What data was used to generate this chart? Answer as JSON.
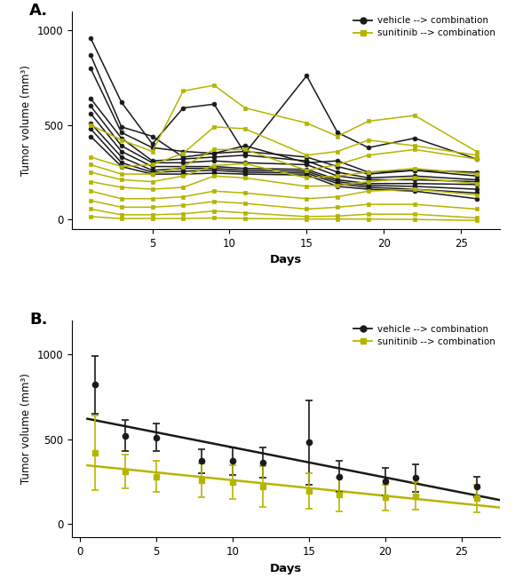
{
  "panel_A_label": "A.",
  "panel_B_label": "B.",
  "black_color": "#1a1a1a",
  "yellow_color": "#b5b500",
  "ylabel": "Tumor volume (mm³)",
  "xlabel": "Days",
  "legend_black": "vehicle --> combination",
  "legend_yellow": "sunitinib --> combination",
  "panel_A_black_lines": [
    [
      1,
      960,
      3,
      620,
      5,
      400,
      7,
      590,
      9,
      610,
      11,
      350,
      15,
      760,
      17,
      460,
      19,
      380,
      22,
      430,
      26,
      320
    ],
    [
      1,
      870,
      3,
      490,
      5,
      440,
      7,
      330,
      9,
      350,
      11,
      390,
      15,
      300,
      17,
      310,
      19,
      250,
      22,
      260,
      26,
      250
    ],
    [
      1,
      800,
      3,
      460,
      5,
      380,
      7,
      360,
      9,
      350,
      11,
      360,
      15,
      330,
      17,
      280,
      19,
      240,
      22,
      260,
      26,
      230
    ],
    [
      1,
      640,
      3,
      430,
      5,
      310,
      7,
      320,
      9,
      330,
      11,
      340,
      15,
      310,
      17,
      250,
      19,
      220,
      22,
      230,
      26,
      210
    ],
    [
      1,
      600,
      3,
      390,
      5,
      300,
      7,
      300,
      9,
      310,
      11,
      300,
      15,
      290,
      17,
      230,
      19,
      210,
      22,
      210,
      26,
      200
    ],
    [
      1,
      560,
      3,
      360,
      5,
      280,
      7,
      280,
      9,
      280,
      11,
      270,
      15,
      265,
      17,
      210,
      19,
      190,
      22,
      190,
      26,
      185
    ],
    [
      1,
      510,
      3,
      330,
      5,
      260,
      7,
      270,
      9,
      270,
      11,
      260,
      15,
      255,
      17,
      200,
      19,
      180,
      22,
      175,
      26,
      160
    ],
    [
      1,
      480,
      3,
      300,
      5,
      250,
      7,
      255,
      9,
      260,
      11,
      250,
      15,
      245,
      17,
      190,
      19,
      170,
      22,
      160,
      26,
      140
    ],
    [
      1,
      440,
      3,
      280,
      5,
      240,
      7,
      240,
      9,
      245,
      11,
      240,
      15,
      235,
      17,
      175,
      19,
      160,
      22,
      150,
      26,
      110
    ]
  ],
  "panel_A_yellow_lines": [
    [
      1,
      500,
      3,
      420,
      5,
      360,
      7,
      680,
      9,
      710,
      11,
      590,
      15,
      510,
      17,
      440,
      19,
      520,
      22,
      550,
      26,
      360
    ],
    [
      1,
      330,
      3,
      280,
      5,
      290,
      7,
      350,
      9,
      490,
      11,
      480,
      15,
      340,
      17,
      360,
      19,
      420,
      22,
      390,
      26,
      340
    ],
    [
      1,
      290,
      3,
      240,
      5,
      240,
      7,
      280,
      9,
      370,
      11,
      370,
      15,
      260,
      17,
      290,
      19,
      340,
      22,
      370,
      26,
      320
    ],
    [
      1,
      250,
      3,
      210,
      5,
      200,
      7,
      230,
      9,
      285,
      11,
      295,
      15,
      220,
      17,
      230,
      19,
      250,
      22,
      270,
      26,
      240
    ],
    [
      1,
      200,
      3,
      170,
      5,
      160,
      7,
      170,
      9,
      230,
      11,
      220,
      15,
      175,
      17,
      180,
      19,
      200,
      22,
      220,
      26,
      190
    ],
    [
      1,
      150,
      3,
      110,
      5,
      110,
      7,
      120,
      9,
      150,
      11,
      140,
      15,
      110,
      17,
      120,
      19,
      150,
      22,
      160,
      26,
      130
    ],
    [
      1,
      100,
      3,
      65,
      5,
      65,
      7,
      75,
      9,
      95,
      11,
      85,
      15,
      55,
      17,
      65,
      19,
      80,
      22,
      80,
      26,
      55
    ],
    [
      1,
      55,
      3,
      25,
      5,
      25,
      7,
      30,
      9,
      45,
      11,
      35,
      15,
      15,
      17,
      18,
      19,
      28,
      22,
      28,
      26,
      8
    ],
    [
      1,
      15,
      3,
      5,
      5,
      5,
      7,
      5,
      9,
      8,
      11,
      5,
      15,
      2,
      17,
      2,
      19,
      2,
      22,
      0,
      26,
      -5
    ]
  ],
  "panel_B_black_x": [
    1,
    3,
    5,
    8,
    10,
    12,
    15,
    17,
    20,
    22,
    26
  ],
  "panel_B_black_mean": [
    820,
    520,
    510,
    370,
    370,
    360,
    480,
    280,
    250,
    270,
    220
  ],
  "panel_B_black_err": [
    170,
    90,
    80,
    70,
    80,
    90,
    250,
    90,
    80,
    80,
    60
  ],
  "panel_B_yellow_x": [
    1,
    3,
    5,
    8,
    10,
    12,
    15,
    17,
    20,
    22,
    26
  ],
  "panel_B_yellow_mean": [
    420,
    310,
    280,
    255,
    245,
    220,
    195,
    175,
    155,
    165,
    150
  ],
  "panel_B_yellow_err": [
    220,
    100,
    90,
    100,
    100,
    120,
    105,
    100,
    75,
    80,
    80
  ],
  "panel_B_xlim": [
    -0.5,
    27.5
  ],
  "panel_B_ylim": [
    -80,
    1200
  ],
  "panel_A_xlim": [
    -0.2,
    27.5
  ],
  "panel_A_ylim": [
    -50,
    1100
  ],
  "yticks_A": [
    0,
    500,
    1000
  ],
  "yticks_B": [
    0,
    500,
    1000
  ],
  "xticks_A": [
    5,
    10,
    15,
    20,
    25
  ],
  "xticks_B": [
    0,
    5,
    10,
    15,
    20,
    25
  ]
}
